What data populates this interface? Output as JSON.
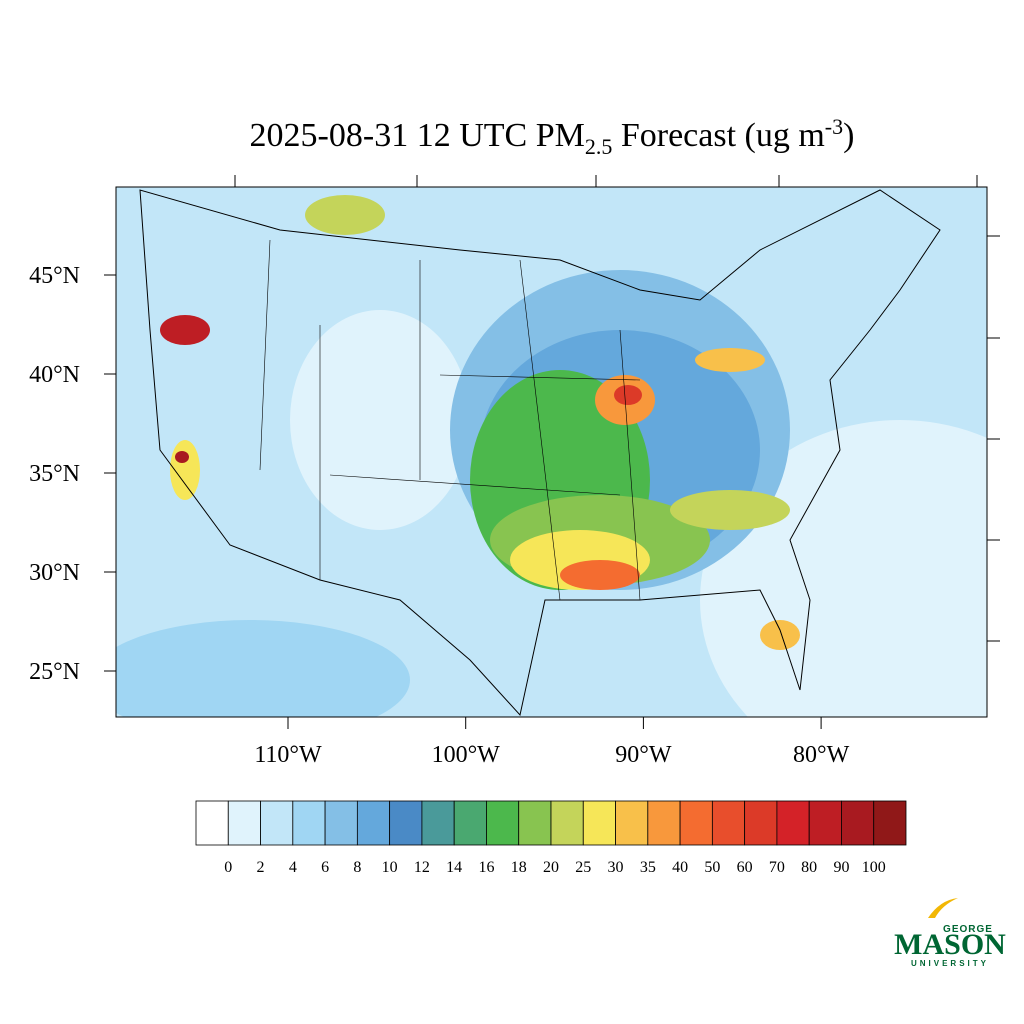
{
  "title": {
    "prefix": "2025-08-31 12 UTC PM",
    "sub": "2.5",
    "middle": " Forecast (ug m",
    "sup": "-3",
    "suffix": ")"
  },
  "map": {
    "lat_ticks": [
      {
        "value": 45,
        "label": "45°N"
      },
      {
        "value": 40,
        "label": "40°N"
      },
      {
        "value": 35,
        "label": "35°N"
      },
      {
        "value": 30,
        "label": "30°N"
      },
      {
        "value": 25,
        "label": "25°N"
      }
    ],
    "lon_ticks": [
      {
        "value": -110,
        "label": "110°W"
      },
      {
        "value": -100,
        "label": "100°W"
      },
      {
        "value": -90,
        "label": "90°W"
      },
      {
        "value": -80,
        "label": "80°W"
      }
    ]
  },
  "colorbar": {
    "labels": [
      "0",
      "2",
      "4",
      "6",
      "8",
      "10",
      "12",
      "14",
      "16",
      "18",
      "20",
      "25",
      "30",
      "35",
      "40",
      "50",
      "60",
      "70",
      "80",
      "90",
      "100"
    ],
    "colors": [
      "#ffffff",
      "#e0f3fc",
      "#c2e6f8",
      "#a0d6f3",
      "#84bfe6",
      "#64a8dc",
      "#4a8ac6",
      "#4a9a9a",
      "#4aa870",
      "#4cb84c",
      "#88c450",
      "#c4d45a",
      "#f6e658",
      "#f8c04a",
      "#f8983c",
      "#f46c30",
      "#e84e2c",
      "#dc3a28",
      "#d42228",
      "#be1e24",
      "#a81a20",
      "#901818"
    ]
  },
  "logo": {
    "top": "GEORGE",
    "main": "MASON",
    "bottom": "UNIVERSITY"
  }
}
